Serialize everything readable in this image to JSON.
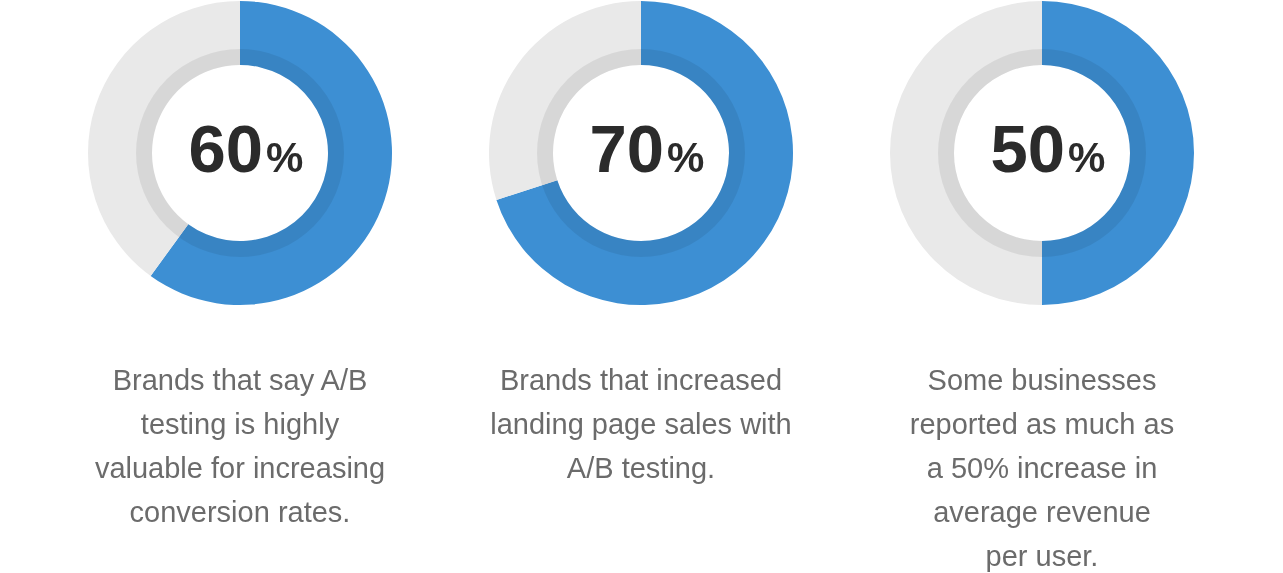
{
  "chart_data": [
    {
      "type": "donut",
      "categories": [
        null,
        null
      ],
      "values": [
        60,
        40
      ],
      "colors": [
        "#3d8fd3",
        "#e9e9e9"
      ],
      "value_labels": [
        "60%",
        null
      ],
      "annotations": [
        "Brands that say A/B\ntesting is highly\nvaluable for increasing\nconversion rates."
      ]
    },
    {
      "type": "donut",
      "categories": [
        null,
        null
      ],
      "values": [
        70,
        30
      ],
      "colors": [
        "#3d8fd3",
        "#e9e9e9"
      ],
      "value_labels": [
        "70%",
        null
      ],
      "annotations": [
        "Brands that increased\nlanding page sales with\nA/B testing."
      ]
    },
    {
      "type": "donut",
      "categories": [
        null,
        null
      ],
      "values": [
        50,
        50
      ],
      "colors": [
        "#3d8fd3",
        "#e9e9e9"
      ],
      "value_labels": [
        "50%",
        null
      ],
      "annotations": [
        "Some businesses\nreported as much as\na 50% increase in\naverage revenue\nper user."
      ]
    }
  ]
}
